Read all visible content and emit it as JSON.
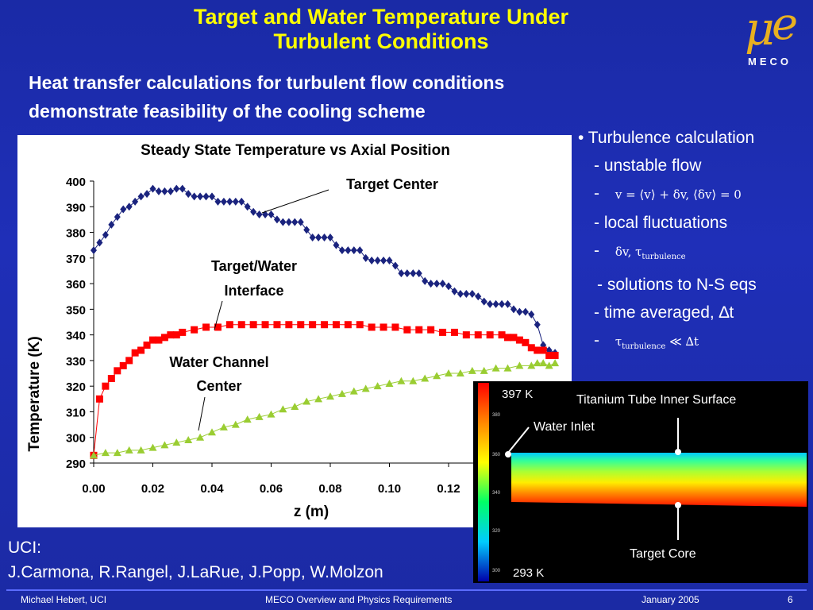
{
  "slide": {
    "title_line1": "Target and Water Temperature Under",
    "title_line2": "Turbulent Conditions",
    "logo_text": "MECO",
    "subtitle_line1": "Heat transfer calculations for turbulent flow conditions",
    "subtitle_line2": "demonstrate feasibility of the cooling scheme"
  },
  "bullets": {
    "b1": "• Turbulence calculation",
    "b2": "- unstable flow",
    "b3_dash": "-",
    "b4": "- local fluctuations",
    "b5_dash": "-",
    "b6": "- solutions to N-S eqs",
    "b7": "- time averaged, ∆t",
    "b8_dash": "-",
    "eq1": "v = ⟨v⟩ + δv,  ⟨δv⟩ = 0",
    "eq2_a": "δv,  τ",
    "eq2_sub": "turbulence",
    "eq3_a": "τ",
    "eq3_sub": "turbulence",
    "eq3_b": " ≪  ∆t"
  },
  "credits": {
    "line1": "UCI:",
    "line2": "J.Carmona, R.Rangel, J.LaRue, J.Popp, W.Molzon"
  },
  "footer": {
    "author": "Michael Hebert, UCI",
    "talk": "MECO Overview and Physics Requirements",
    "date": "January 2005",
    "page": "6"
  },
  "sim": {
    "top_label": "397 K",
    "bottom_label": "293 K",
    "surface_label": "Titanium Tube Inner Surface",
    "inlet_label": "Water Inlet",
    "core_label": "Target Core",
    "colorbar_ticks": [
      "380",
      "360",
      "340",
      "320",
      "300"
    ]
  },
  "chart_data": {
    "type": "scatter",
    "title": "Steady State Temperature vs Axial Position",
    "xlabel": "z (m)",
    "ylabel": "Temperature (K)",
    "xlim": [
      0,
      0.16
    ],
    "ylim": [
      290,
      400
    ],
    "x_ticks": [
      "0.00",
      "0.02",
      "0.04",
      "0.06",
      "0.08",
      "0.10",
      "0.12"
    ],
    "y_ticks": [
      "400",
      "390",
      "380",
      "370",
      "360",
      "350",
      "340",
      "330",
      "320",
      "310",
      "300",
      "290"
    ],
    "annotations": [
      "Target Center",
      "Target/Water Interface",
      "Water Channel Center"
    ],
    "annotation_lines": {
      "target_water_1": "Target/Water",
      "target_water_2": "Interface",
      "water_channel_1": "Water Channel",
      "water_channel_2": "Center"
    },
    "series": [
      {
        "name": "Target Center",
        "color": "#1a237e",
        "marker": "diamond",
        "x": [
          0.0,
          0.002,
          0.004,
          0.006,
          0.008,
          0.01,
          0.012,
          0.014,
          0.016,
          0.018,
          0.02,
          0.022,
          0.024,
          0.026,
          0.028,
          0.03,
          0.032,
          0.034,
          0.036,
          0.038,
          0.04,
          0.042,
          0.044,
          0.046,
          0.048,
          0.05,
          0.052,
          0.054,
          0.056,
          0.058,
          0.06,
          0.062,
          0.064,
          0.066,
          0.068,
          0.07,
          0.072,
          0.074,
          0.076,
          0.078,
          0.08,
          0.082,
          0.084,
          0.086,
          0.088,
          0.09,
          0.092,
          0.094,
          0.096,
          0.098,
          0.1,
          0.102,
          0.104,
          0.106,
          0.108,
          0.11,
          0.112,
          0.114,
          0.116,
          0.118,
          0.12,
          0.122,
          0.124,
          0.126,
          0.128,
          0.13,
          0.132,
          0.134,
          0.136,
          0.138,
          0.14,
          0.142,
          0.144,
          0.146,
          0.148,
          0.15,
          0.152,
          0.154,
          0.156
        ],
        "y": [
          373,
          376,
          379,
          383,
          386,
          389,
          390,
          392,
          394,
          395,
          397,
          396,
          396,
          396,
          397,
          397,
          395,
          394,
          394,
          394,
          394,
          392,
          392,
          392,
          392,
          392,
          390,
          388,
          387,
          387,
          387,
          385,
          384,
          384,
          384,
          384,
          381,
          378,
          378,
          378,
          378,
          375,
          373,
          373,
          373,
          373,
          370,
          369,
          369,
          369,
          369,
          367,
          364,
          364,
          364,
          364,
          361,
          360,
          360,
          360,
          359,
          357,
          356,
          356,
          356,
          355,
          353,
          352,
          352,
          352,
          352,
          350,
          349,
          349,
          348,
          344,
          336,
          334,
          333
        ]
      },
      {
        "name": "Target/Water Interface",
        "color": "#ff0000",
        "marker": "square",
        "x": [
          0.0,
          0.002,
          0.004,
          0.006,
          0.008,
          0.01,
          0.012,
          0.014,
          0.016,
          0.018,
          0.02,
          0.022,
          0.024,
          0.026,
          0.028,
          0.03,
          0.034,
          0.038,
          0.042,
          0.046,
          0.05,
          0.054,
          0.058,
          0.062,
          0.066,
          0.07,
          0.074,
          0.078,
          0.082,
          0.086,
          0.09,
          0.094,
          0.098,
          0.102,
          0.106,
          0.11,
          0.114,
          0.118,
          0.122,
          0.126,
          0.13,
          0.134,
          0.138,
          0.14,
          0.142,
          0.144,
          0.146,
          0.148,
          0.15,
          0.152,
          0.154,
          0.156
        ],
        "y": [
          293,
          315,
          320,
          323,
          326,
          328,
          330,
          333,
          334,
          336,
          338,
          338,
          339,
          340,
          340,
          341,
          342,
          343,
          343,
          344,
          344,
          344,
          344,
          344,
          344,
          344,
          344,
          344,
          344,
          344,
          344,
          343,
          343,
          343,
          342,
          342,
          342,
          341,
          341,
          340,
          340,
          340,
          340,
          339,
          339,
          338,
          337,
          335,
          334,
          334,
          332,
          332
        ]
      },
      {
        "name": "Water Channel Center",
        "color": "#9acd32",
        "marker": "triangle",
        "x": [
          0.0,
          0.004,
          0.008,
          0.012,
          0.016,
          0.02,
          0.024,
          0.028,
          0.032,
          0.036,
          0.04,
          0.044,
          0.048,
          0.052,
          0.056,
          0.06,
          0.064,
          0.068,
          0.072,
          0.076,
          0.08,
          0.084,
          0.088,
          0.092,
          0.096,
          0.1,
          0.104,
          0.108,
          0.112,
          0.116,
          0.12,
          0.124,
          0.128,
          0.132,
          0.136,
          0.14,
          0.144,
          0.148,
          0.15,
          0.152,
          0.154,
          0.156
        ],
        "y": [
          293,
          294,
          294,
          295,
          295,
          296,
          297,
          298,
          299,
          300,
          302,
          304,
          305,
          307,
          308,
          309,
          311,
          312,
          314,
          315,
          316,
          317,
          318,
          319,
          320,
          321,
          322,
          322,
          323,
          324,
          325,
          325,
          326,
          326,
          327,
          327,
          328,
          328,
          329,
          329,
          328,
          329
        ]
      }
    ]
  }
}
